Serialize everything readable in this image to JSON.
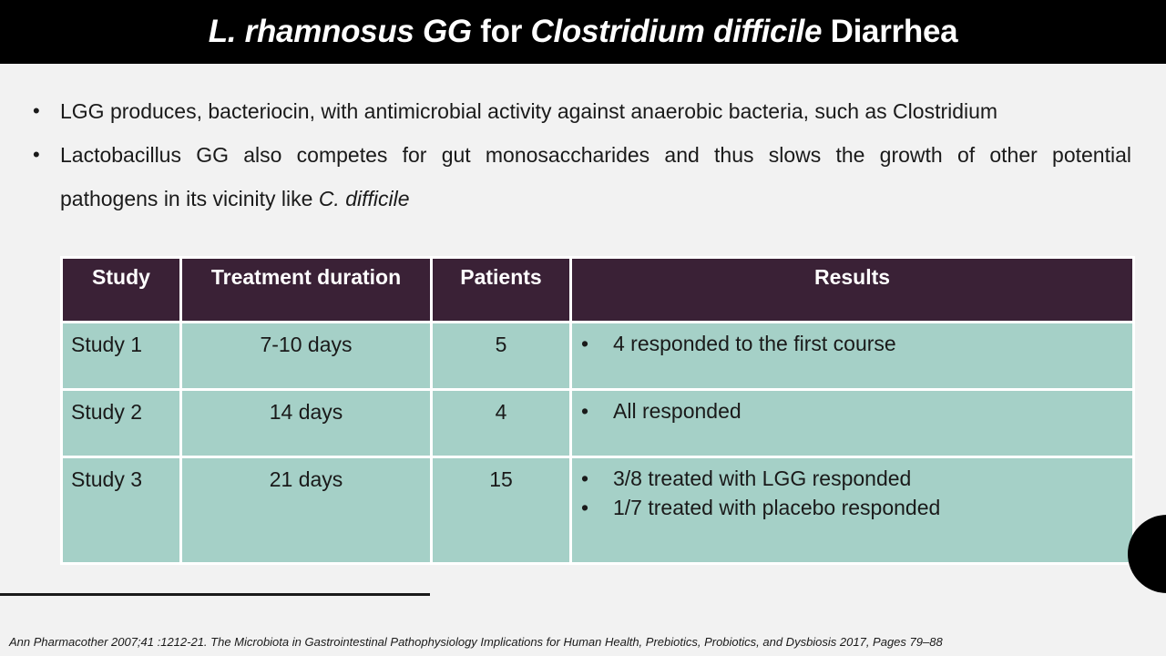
{
  "title": {
    "part1": "L. rhamnosus GG",
    "part2": " for ",
    "part3": "Clostridium difficile",
    "part4": " Diarrhea"
  },
  "bullets": {
    "b1": "LGG produces, bacteriocin, with antimicrobial activity against anaerobic bacteria, such as Clostridium",
    "b2_line1": "Lactobacillus GG also competes for gut monosaccharides and thus slows the growth of other potential",
    "b2_line2": "pathogens in its vicinity like ",
    "b2_italic": "C. difficile"
  },
  "table": {
    "headers": [
      "Study",
      "Treatment duration",
      "Patients",
      "Results"
    ],
    "rows": [
      {
        "study": "Study 1",
        "duration": "7-10 days",
        "patients": "5",
        "results": [
          "4 responded to the first course"
        ]
      },
      {
        "study": "Study 2",
        "duration": "14 days",
        "patients": "4",
        "results": [
          "All responded"
        ]
      },
      {
        "study": "Study 3",
        "duration": "21 days",
        "patients": "15",
        "results": [
          "3/8 treated with LGG responded",
          "1/7 treated with placebo responded"
        ]
      }
    ]
  },
  "footnote": "Ann Pharmacother 2007;41 :1212-21. The Microbiota in Gastrointestinal  Pathophysiology Implications for Human Health, Prebiotics, Probiotics, and Dysbiosis 2017, Pages 79–88",
  "colors": {
    "title_bar": "#000000",
    "header_row": "#3a2136",
    "body_rows": "#a5d0c7",
    "background": "#f2f2f2"
  }
}
